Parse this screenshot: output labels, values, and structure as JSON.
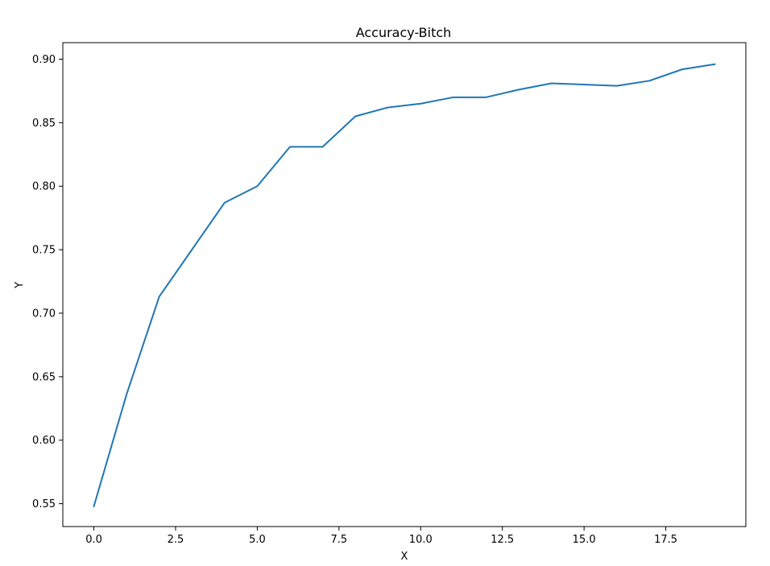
{
  "chart_data": {
    "type": "line",
    "title": "Accuracy-Bitch",
    "xlabel": "X",
    "ylabel": "Y",
    "xlim": [
      -0.95,
      19.95
    ],
    "ylim": [
      0.532,
      0.913
    ],
    "x_ticks": [
      0.0,
      2.5,
      5.0,
      7.5,
      10.0,
      12.5,
      15.0,
      17.5
    ],
    "x_tick_labels": [
      "0.0",
      "2.5",
      "5.0",
      "7.5",
      "10.0",
      "12.5",
      "15.0",
      "17.5"
    ],
    "y_ticks": [
      0.55,
      0.6,
      0.65,
      0.7,
      0.75,
      0.8,
      0.85,
      0.9
    ],
    "y_tick_labels": [
      "0.55",
      "0.60",
      "0.65",
      "0.70",
      "0.75",
      "0.80",
      "0.85",
      "0.90"
    ],
    "grid": false,
    "series": [
      {
        "x": [
          0,
          1,
          2,
          3,
          4,
          5,
          6,
          7,
          8,
          9,
          10,
          11,
          12,
          13,
          14,
          15,
          16,
          17,
          18,
          19
        ],
        "values": [
          0.548,
          0.636,
          0.713,
          0.75,
          0.787,
          0.8,
          0.831,
          0.831,
          0.855,
          0.862,
          0.865,
          0.87,
          0.87,
          0.876,
          0.881,
          0.88,
          0.879,
          0.883,
          0.892,
          0.896
        ],
        "color": "#1f77b4"
      }
    ]
  }
}
